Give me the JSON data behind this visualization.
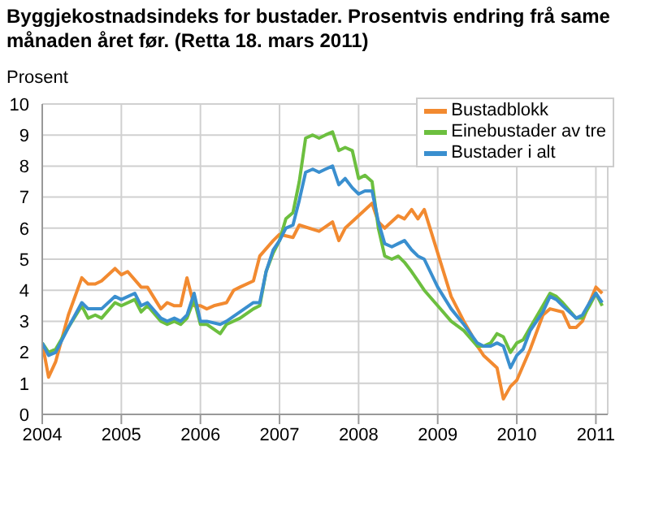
{
  "chart_data": {
    "type": "line",
    "title": "Byggjekostnadsindeks for bustader. Prosentvis endring frå same månaden året før. (Retta 18. mars 2011)",
    "ylabel": "Prosent",
    "xlim": [
      2004,
      2011.15
    ],
    "xticks": [
      2004,
      2005,
      2006,
      2007,
      2008,
      2009,
      2010,
      2011
    ],
    "ylim": [
      0,
      10
    ],
    "yticks": [
      0,
      1,
      2,
      3,
      4,
      5,
      6,
      7,
      8,
      9,
      10
    ],
    "grid": true,
    "legend": "top right",
    "marker": "none",
    "line_style": "solid",
    "series": [
      {
        "name": "Bustadblokk",
        "color": "#f28a30",
        "x": [
          2004,
          2004.08,
          2004.17,
          2004.33,
          2004.5,
          2004.58,
          2004.67,
          2004.75,
          2004.92,
          2005,
          2005.08,
          2005.25,
          2005.33,
          2005.5,
          2005.58,
          2005.67,
          2005.75,
          2005.83,
          2005.92,
          2006,
          2006.08,
          2006.17,
          2006.33,
          2006.42,
          2006.5,
          2006.67,
          2006.75,
          2006.92,
          2007,
          2007.17,
          2007.25,
          2007.5,
          2007.67,
          2007.75,
          2007.83,
          2008,
          2008.17,
          2008.25,
          2008.33,
          2008.5,
          2008.58,
          2008.67,
          2008.75,
          2008.83,
          2009,
          2009.17,
          2009.33,
          2009.42,
          2009.5,
          2009.58,
          2009.75,
          2009.83,
          2009.92,
          2010,
          2010.17,
          2010.33,
          2010.42,
          2010.58,
          2010.67,
          2010.75,
          2010.83,
          2010.92,
          2011,
          2011.08
        ],
        "values": [
          2.3,
          1.2,
          1.7,
          3.2,
          4.4,
          4.2,
          4.2,
          4.3,
          4.7,
          4.5,
          4.6,
          4.1,
          4.1,
          3.4,
          3.6,
          3.5,
          3.5,
          4.4,
          3.5,
          3.5,
          3.4,
          3.5,
          3.6,
          4.0,
          4.1,
          4.3,
          5.1,
          5.6,
          5.8,
          5.7,
          6.1,
          5.9,
          6.2,
          5.6,
          6.0,
          6.4,
          6.8,
          6.2,
          6.0,
          6.4,
          6.3,
          6.6,
          6.3,
          6.6,
          5.2,
          3.8,
          3.0,
          2.6,
          2.2,
          1.9,
          1.5,
          0.5,
          0.9,
          1.1,
          2.1,
          3.2,
          3.4,
          3.3,
          2.8,
          2.8,
          3.0,
          3.6,
          4.1,
          3.9
        ]
      },
      {
        "name": "Einebustader av tre",
        "color": "#6cbf3f",
        "x": [
          2004,
          2004.08,
          2004.17,
          2004.33,
          2004.5,
          2004.58,
          2004.67,
          2004.75,
          2004.92,
          2005,
          2005.17,
          2005.25,
          2005.33,
          2005.5,
          2005.58,
          2005.67,
          2005.75,
          2005.83,
          2005.92,
          2006,
          2006.08,
          2006.25,
          2006.33,
          2006.5,
          2006.67,
          2006.75,
          2006.83,
          2006.92,
          2007,
          2007.08,
          2007.17,
          2007.25,
          2007.33,
          2007.42,
          2007.5,
          2007.58,
          2007.67,
          2007.75,
          2007.83,
          2007.92,
          2008,
          2008.08,
          2008.17,
          2008.25,
          2008.33,
          2008.42,
          2008.5,
          2008.58,
          2008.67,
          2008.75,
          2008.83,
          2009,
          2009.17,
          2009.33,
          2009.5,
          2009.58,
          2009.67,
          2009.75,
          2009.83,
          2009.92,
          2010,
          2010.08,
          2010.17,
          2010.33,
          2010.42,
          2010.5,
          2010.58,
          2010.75,
          2010.83,
          2010.92,
          2011,
          2011.08
        ],
        "values": [
          2.3,
          2.0,
          2.1,
          2.8,
          3.5,
          3.1,
          3.2,
          3.1,
          3.6,
          3.5,
          3.7,
          3.3,
          3.5,
          3.0,
          2.9,
          3.0,
          2.9,
          3.1,
          3.7,
          2.9,
          2.9,
          2.6,
          2.9,
          3.1,
          3.4,
          3.5,
          4.6,
          5.2,
          5.6,
          6.3,
          6.5,
          7.5,
          8.9,
          9.0,
          8.9,
          9.0,
          9.1,
          8.5,
          8.6,
          8.5,
          7.6,
          7.7,
          7.5,
          6.0,
          5.1,
          5.0,
          5.1,
          4.9,
          4.6,
          4.3,
          4.0,
          3.5,
          3.0,
          2.7,
          2.2,
          2.2,
          2.3,
          2.6,
          2.5,
          2.0,
          2.3,
          2.4,
          2.8,
          3.5,
          3.9,
          3.8,
          3.6,
          3.1,
          3.1,
          3.5,
          3.9,
          3.5
        ]
      },
      {
        "name": "Bustader i alt",
        "color": "#3a8fcf",
        "x": [
          2004,
          2004.08,
          2004.17,
          2004.33,
          2004.5,
          2004.58,
          2004.67,
          2004.75,
          2004.92,
          2005,
          2005.17,
          2005.25,
          2005.33,
          2005.5,
          2005.58,
          2005.67,
          2005.75,
          2005.83,
          2005.92,
          2006,
          2006.08,
          2006.25,
          2006.33,
          2006.5,
          2006.67,
          2006.75,
          2006.83,
          2006.92,
          2007,
          2007.08,
          2007.17,
          2007.25,
          2007.33,
          2007.42,
          2007.5,
          2007.58,
          2007.67,
          2007.75,
          2007.83,
          2007.92,
          2008,
          2008.08,
          2008.17,
          2008.25,
          2008.33,
          2008.42,
          2008.5,
          2008.58,
          2008.67,
          2008.75,
          2008.83,
          2009,
          2009.17,
          2009.33,
          2009.5,
          2009.58,
          2009.67,
          2009.75,
          2009.83,
          2009.92,
          2010,
          2010.08,
          2010.17,
          2010.33,
          2010.42,
          2010.5,
          2010.58,
          2010.75,
          2010.83,
          2010.92,
          2011,
          2011.08
        ],
        "values": [
          2.3,
          1.9,
          2.0,
          2.8,
          3.6,
          3.4,
          3.4,
          3.4,
          3.8,
          3.7,
          3.9,
          3.5,
          3.6,
          3.1,
          3.0,
          3.1,
          3.0,
          3.2,
          3.9,
          3.0,
          3.0,
          2.9,
          3.0,
          3.3,
          3.6,
          3.6,
          4.6,
          5.3,
          5.6,
          6.0,
          6.1,
          6.9,
          7.8,
          7.9,
          7.8,
          7.9,
          8.0,
          7.4,
          7.6,
          7.3,
          7.1,
          7.2,
          7.2,
          6.2,
          5.5,
          5.4,
          5.5,
          5.6,
          5.3,
          5.1,
          5.0,
          4.1,
          3.4,
          2.9,
          2.3,
          2.2,
          2.2,
          2.3,
          2.2,
          1.5,
          1.9,
          2.1,
          2.7,
          3.3,
          3.8,
          3.7,
          3.5,
          3.1,
          3.2,
          3.6,
          3.9,
          3.6
        ]
      }
    ]
  }
}
